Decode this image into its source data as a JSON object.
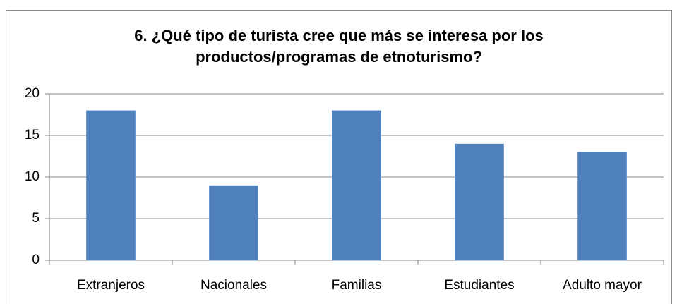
{
  "chart_data": {
    "type": "bar",
    "title": "6. ¿Qué tipo de turista cree que más se interesa por los productos/programas de etnoturismo?",
    "categories": [
      "Extranjeros",
      "Nacionales",
      "Familias",
      "Estudiantes",
      "Adulto mayor"
    ],
    "values": [
      18,
      9,
      18,
      14,
      13
    ],
    "color": "#4f81bd",
    "ylim": [
      0,
      20
    ],
    "yticks": [
      0,
      5,
      10,
      15,
      20
    ],
    "grid": true
  }
}
